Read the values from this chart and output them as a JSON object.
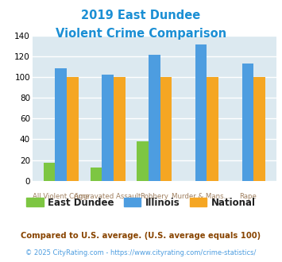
{
  "title_line1": "2019 East Dundee",
  "title_line2": "Violent Crime Comparison",
  "title_color": "#1b8fd4",
  "categories": [
    "All Violent Crime",
    "Aggravated Assault",
    "Robbery",
    "Murder & Mans...",
    "Rape"
  ],
  "cat_labels_top": [
    "",
    "Aggravated Assault",
    "",
    "Murder & Mans...",
    ""
  ],
  "cat_labels_bot": [
    "All Violent Crime",
    "",
    "Robbery",
    "",
    "Rape"
  ],
  "east_dundee": [
    17,
    13,
    38,
    0,
    0
  ],
  "illinois": [
    108,
    102,
    121,
    131,
    113
  ],
  "national": [
    100,
    100,
    100,
    100,
    100
  ],
  "color_east_dundee": "#7dc642",
  "color_illinois": "#4d9de0",
  "color_national": "#f5a623",
  "ylim": [
    0,
    140
  ],
  "yticks": [
    0,
    20,
    40,
    60,
    80,
    100,
    120,
    140
  ],
  "bg_color": "#dce9f0",
  "grid_color": "#ffffff",
  "footnote1": "Compared to U.S. average. (U.S. average equals 100)",
  "footnote2": "© 2025 CityRating.com - https://www.cityrating.com/crime-statistics/",
  "footnote1_color": "#884400",
  "footnote2_color": "#4d9de0",
  "legend_labels": [
    "East Dundee",
    "Illinois",
    "National"
  ],
  "legend_text_color": "#222222",
  "bar_width": 0.25
}
